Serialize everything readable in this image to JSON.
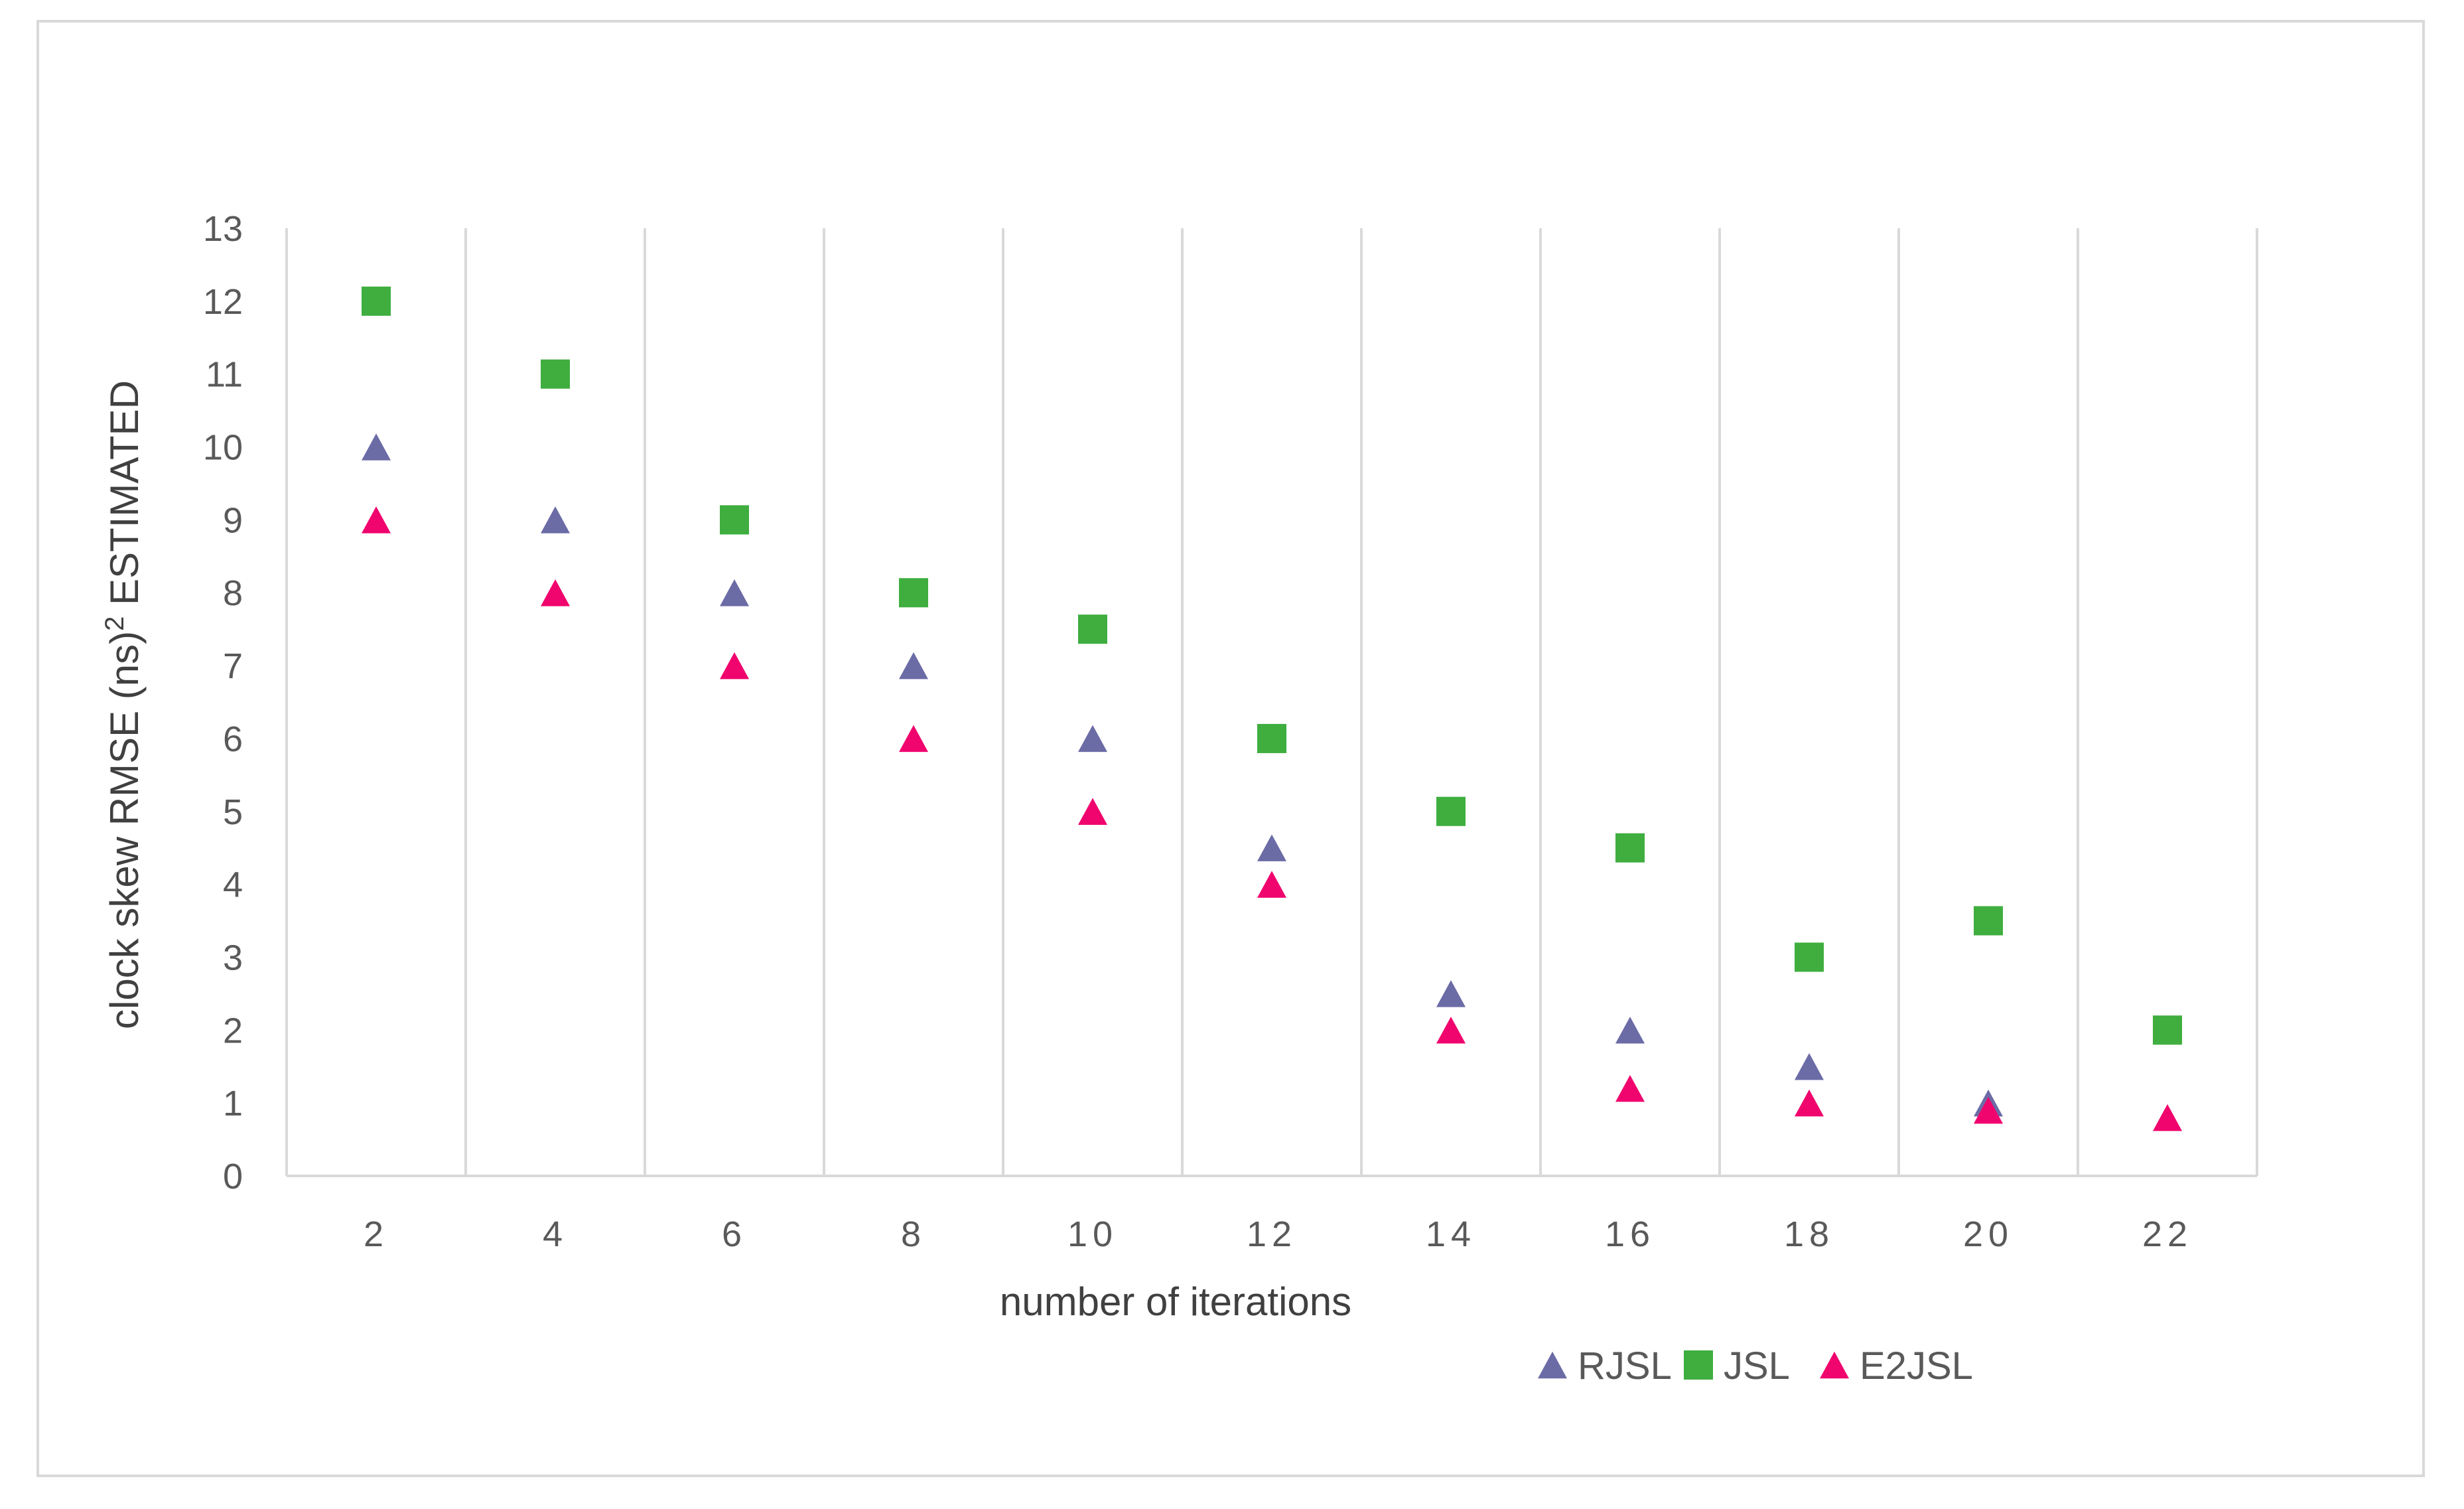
{
  "chart_data": {
    "type": "scatter",
    "title": "",
    "xlabel": "number of iterations",
    "ylabel": "clock skew RMSE (ns)",
    "ylabel_superscript": "2",
    "ylabel_suffix": " ESTIMATED",
    "categories": [
      "2",
      "4",
      "6",
      "8",
      "10",
      "12",
      "14",
      "16",
      "18",
      "20",
      "22"
    ],
    "ylim": [
      0,
      13
    ],
    "yticks": [
      "0",
      "1",
      "2",
      "3",
      "4",
      "5",
      "6",
      "7",
      "8",
      "9",
      "10",
      "11",
      "12",
      "13"
    ],
    "grid": "vertical",
    "legend_position": "bottom-right",
    "series": [
      {
        "name": "RJSL",
        "marker": "triangle",
        "color": "#6b6ba6",
        "values": [
          10,
          9,
          8,
          7,
          6,
          4.5,
          2.5,
          2,
          1.5,
          1,
          null
        ]
      },
      {
        "name": "JSL",
        "marker": "square",
        "color": "#3fae3f",
        "values": [
          12,
          11,
          9,
          8,
          7.5,
          6,
          5,
          4.5,
          3,
          3.5,
          2
        ]
      },
      {
        "name": "E2JSL",
        "marker": "triangle",
        "color": "#f0046e",
        "values": [
          9,
          8,
          7,
          6,
          5,
          4,
          2,
          1.2,
          1,
          0.9,
          0.8
        ]
      }
    ]
  }
}
